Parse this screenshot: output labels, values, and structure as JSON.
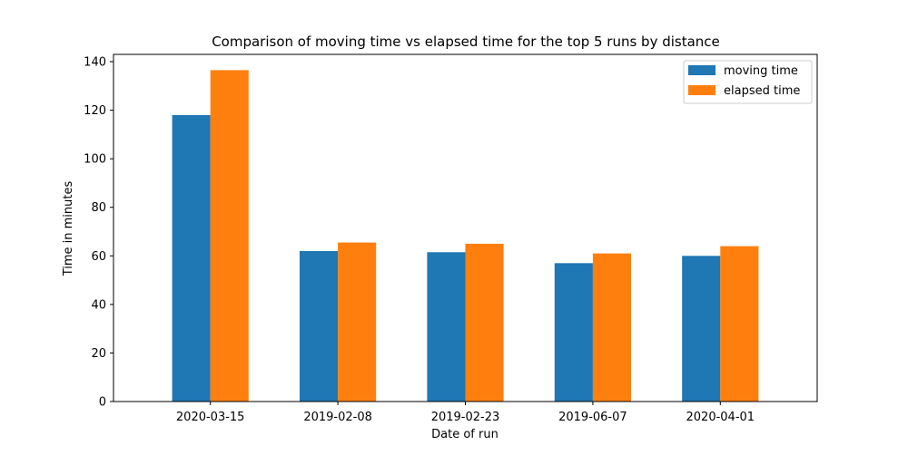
{
  "chart_data": {
    "type": "bar",
    "title": "Comparison of moving time vs elapsed time for the top 5 runs by distance",
    "xlabel": "Date of run",
    "ylabel": "Time in minutes",
    "categories": [
      "2020-03-15",
      "2019-02-08",
      "2019-02-23",
      "2019-06-07",
      "2020-04-01"
    ],
    "series": [
      {
        "name": "moving time",
        "values": [
          118,
          62,
          61.5,
          57,
          60
        ],
        "color": "#1f77b4"
      },
      {
        "name": "elapsed time",
        "values": [
          136.5,
          65.5,
          65,
          61,
          64
        ],
        "color": "#ff7f0e"
      }
    ],
    "ylim": [
      0,
      143
    ],
    "yticks": [
      0,
      20,
      40,
      60,
      80,
      100,
      120,
      140
    ],
    "legend": "top-right",
    "grid": false
  }
}
